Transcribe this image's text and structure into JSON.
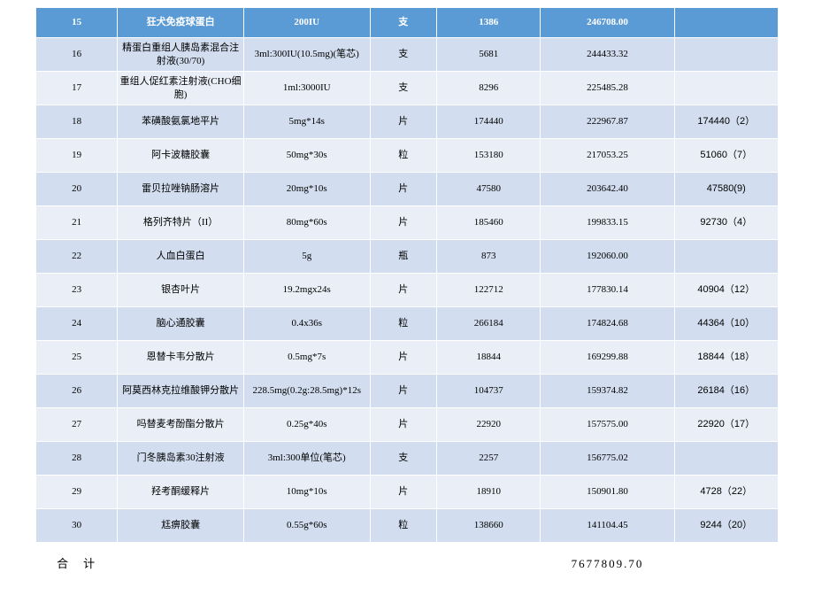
{
  "table": {
    "header_bg": "#5b9bd5",
    "even_bg": "#d2deef",
    "odd_bg": "#eaeff7",
    "border_color": "#ffffff",
    "text_color": "#000000",
    "header_text_color": "#ffffff",
    "col_widths_pct": [
      11,
      17,
      17,
      9,
      14,
      18,
      14
    ],
    "header": [
      "15",
      "狂犬免疫球蛋白",
      "200IU",
      "支",
      "1386",
      "246708.00",
      ""
    ],
    "rows": [
      [
        "16",
        "精蛋白重组人胰岛素混合注射液(30/70)",
        "3ml:300IU(10.5mg)(笔芯)",
        "支",
        "5681",
        "244433.32",
        ""
      ],
      [
        "17",
        "重组人促红素注射液(CHO细胞)",
        "1ml:3000IU",
        "支",
        "8296",
        "225485.28",
        ""
      ],
      [
        "18",
        "苯磺酸氨氯地平片",
        "5mg*14s",
        "片",
        "174440",
        "222967.87",
        "174440（2）"
      ],
      [
        "19",
        "阿卡波糖胶囊",
        "50mg*30s",
        "粒",
        "153180",
        "217053.25",
        "51060（7）"
      ],
      [
        "20",
        "雷贝拉唑钠肠溶片",
        "20mg*10s",
        "片",
        "47580",
        "203642.40",
        "47580(9)"
      ],
      [
        "21",
        "格列齐特片（II）",
        "80mg*60s",
        "片",
        "185460",
        "199833.15",
        "92730（4）"
      ],
      [
        "22",
        "人血白蛋白",
        "5g",
        "瓶",
        "873",
        "192060.00",
        ""
      ],
      [
        "23",
        "银杏叶片",
        "19.2mgx24s",
        "片",
        "122712",
        "177830.14",
        "40904（12）"
      ],
      [
        "24",
        "脑心通胶囊",
        "0.4x36s",
        "粒",
        "266184",
        "174824.68",
        "44364（10）"
      ],
      [
        "25",
        "恩替卡韦分散片",
        "0.5mg*7s",
        "片",
        "18844",
        "169299.88",
        "18844（18）"
      ],
      [
        "26",
        "阿莫西林克拉维酸钾分散片",
        "228.5mg(0.2g:28.5mg)*12s",
        "片",
        "104737",
        "159374.82",
        "26184（16）"
      ],
      [
        "27",
        "吗替麦考酚酯分散片",
        "0.25g*40s",
        "片",
        "22920",
        "157575.00",
        "22920（17）"
      ],
      [
        "28",
        "门冬胰岛素30注射液",
        "3ml:300单位(笔芯)",
        "支",
        "2257",
        "156775.02",
        ""
      ],
      [
        "29",
        "羟考酮缓释片",
        "10mg*10s",
        "片",
        "18910",
        "150901.80",
        "4728（22）"
      ],
      [
        "30",
        "尪痹胶囊",
        "0.55g*60s",
        "粒",
        "138660",
        "141104.45",
        "9244（20）"
      ]
    ],
    "total_label": "合　计",
    "total_value": "7677809.70"
  }
}
